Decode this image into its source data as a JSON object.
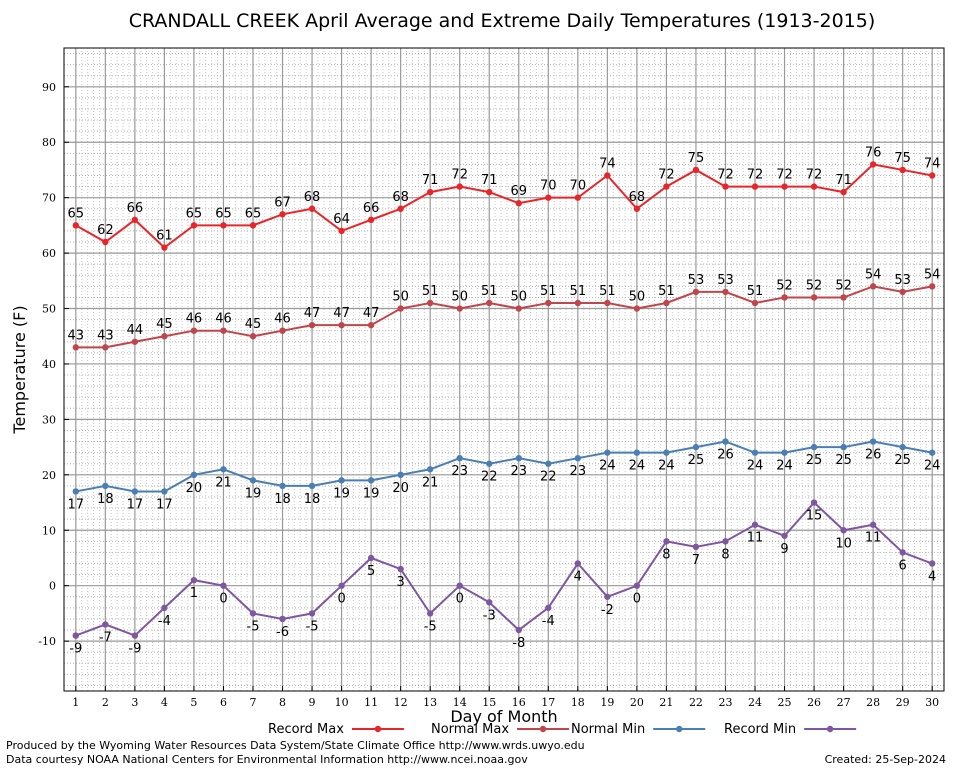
{
  "chart_data": {
    "type": "line",
    "title": "CRANDALL CREEK April Average and Extreme Daily Temperatures (1913-2015)",
    "xlabel": "Day of Month",
    "ylabel": "Temperature (F)",
    "x": [
      1,
      2,
      3,
      4,
      5,
      6,
      7,
      8,
      9,
      10,
      11,
      12,
      13,
      14,
      15,
      16,
      17,
      18,
      19,
      20,
      21,
      22,
      23,
      24,
      25,
      26,
      27,
      28,
      29,
      30
    ],
    "xlim": [
      0.6,
      30.4
    ],
    "ylim": [
      -19,
      97
    ],
    "yticks": [
      -10,
      0,
      10,
      20,
      30,
      40,
      50,
      60,
      70,
      80,
      90
    ],
    "grid": true,
    "legend_position": "bottom",
    "series": [
      {
        "name": "Record Max",
        "color": "#e8262a",
        "label_position": "above",
        "values": [
          65,
          62,
          66,
          61,
          65,
          65,
          65,
          67,
          68,
          64,
          66,
          68,
          71,
          72,
          71,
          69,
          70,
          70,
          74,
          68,
          72,
          75,
          72,
          72,
          72,
          72,
          71,
          76,
          75,
          74
        ]
      },
      {
        "name": "Normal Max",
        "color": "#c0464c",
        "label_position": "above",
        "values": [
          43,
          43,
          44,
          45,
          46,
          46,
          45,
          46,
          47,
          47,
          47,
          50,
          51,
          50,
          51,
          50,
          51,
          51,
          51,
          50,
          51,
          53,
          53,
          51,
          52,
          52,
          52,
          54,
          53,
          54
        ]
      },
      {
        "name": "Normal Min",
        "color": "#4a7fb5",
        "label_position": "below",
        "values": [
          17,
          18,
          17,
          17,
          20,
          21,
          19,
          18,
          18,
          19,
          19,
          20,
          21,
          23,
          22,
          23,
          22,
          23,
          24,
          24,
          24,
          25,
          26,
          24,
          24,
          25,
          25,
          26,
          25,
          24
        ]
      },
      {
        "name": "Record Min",
        "color": "#7e57a0",
        "label_position": "below",
        "values": [
          -9,
          -7,
          -9,
          -4,
          1,
          0,
          -5,
          -6,
          -5,
          0,
          5,
          3,
          -5,
          0,
          -3,
          -8,
          -4,
          4,
          -2,
          0,
          8,
          7,
          8,
          11,
          9,
          15,
          10,
          11,
          6,
          4
        ]
      }
    ]
  },
  "footer": {
    "line1": "Produced by the Wyoming Water Resources Data System/State Climate Office http://www.wrds.uwyo.edu",
    "line2": "Data courtesy NOAA National Centers for Environmental Information http://www.ncei.noaa.gov",
    "created": "Created:  25-Sep-2024"
  }
}
